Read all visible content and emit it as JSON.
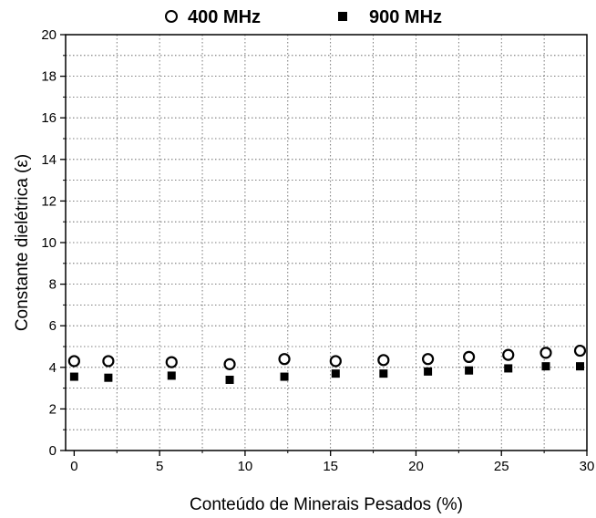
{
  "chart_data": {
    "type": "scatter",
    "xlabel": "Conteúdo de Minerais Pesados (%)",
    "ylabel": "Constante dielétrica (ε)",
    "xlim": [
      -0.5,
      30
    ],
    "ylim": [
      0,
      20
    ],
    "xticks": [
      0,
      5,
      10,
      15,
      20,
      25,
      30
    ],
    "yticks": [
      0,
      2,
      4,
      6,
      8,
      10,
      12,
      14,
      16,
      18,
      20
    ],
    "grid": true,
    "legend_position": "top",
    "series": [
      {
        "name": "400 MHz",
        "marker": "open-circle",
        "color": "#000000",
        "x": [
          0,
          2,
          5.7,
          9.1,
          12.3,
          15.3,
          18.1,
          20.7,
          23.1,
          25.4,
          27.6,
          29.6
        ],
        "y": [
          4.3,
          4.3,
          4.25,
          4.15,
          4.4,
          4.3,
          4.35,
          4.4,
          4.5,
          4.6,
          4.7,
          4.8
        ]
      },
      {
        "name": "900 MHz",
        "marker": "filled-square",
        "color": "#000000",
        "x": [
          0,
          2,
          5.7,
          9.1,
          12.3,
          15.3,
          18.1,
          20.7,
          23.1,
          25.4,
          27.6,
          29.6
        ],
        "y": [
          3.55,
          3.5,
          3.6,
          3.4,
          3.55,
          3.7,
          3.7,
          3.8,
          3.85,
          3.95,
          4.05,
          4.05
        ]
      }
    ]
  }
}
